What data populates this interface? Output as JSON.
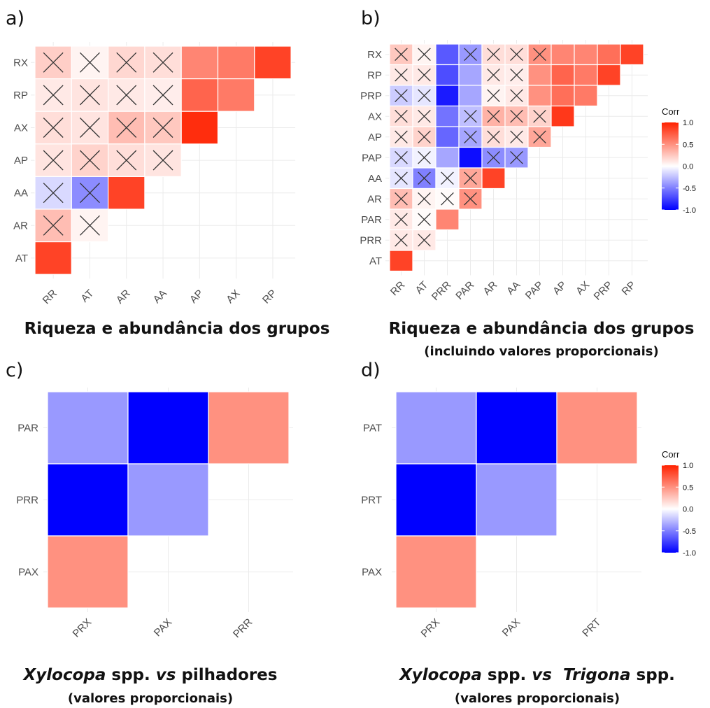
{
  "chart_data": [
    {
      "panel": "a)",
      "type": "heatmap",
      "caption": "Riqueza e abundância dos grupos",
      "subcaption": "",
      "x_labels": [
        "RR",
        "AT",
        "AR",
        "AA",
        "AP",
        "AX",
        "RP"
      ],
      "y_labels": [
        "RX",
        "RP",
        "AX",
        "AP",
        "AA",
        "AR",
        "AT"
      ],
      "cells": [
        {
          "x": "RR",
          "y": "RX",
          "value": 0.22,
          "crossed": true
        },
        {
          "x": "AT",
          "y": "RX",
          "value": 0.05,
          "crossed": true
        },
        {
          "x": "AR",
          "y": "RX",
          "value": 0.18,
          "crossed": true
        },
        {
          "x": "AA",
          "y": "RX",
          "value": 0.15,
          "crossed": true
        },
        {
          "x": "AP",
          "y": "RX",
          "value": 0.55,
          "crossed": false
        },
        {
          "x": "AX",
          "y": "RX",
          "value": 0.6,
          "crossed": false
        },
        {
          "x": "RP",
          "y": "RX",
          "value": 0.85,
          "crossed": false
        },
        {
          "x": "RR",
          "y": "RP",
          "value": 0.1,
          "crossed": true
        },
        {
          "x": "AT",
          "y": "RP",
          "value": 0.12,
          "crossed": true
        },
        {
          "x": "AR",
          "y": "RP",
          "value": 0.1,
          "crossed": true
        },
        {
          "x": "AA",
          "y": "RP",
          "value": 0.08,
          "crossed": true
        },
        {
          "x": "AP",
          "y": "RP",
          "value": 0.7,
          "crossed": false
        },
        {
          "x": "AX",
          "y": "RP",
          "value": 0.6,
          "crossed": false
        },
        {
          "x": "RR",
          "y": "AX",
          "value": 0.15,
          "crossed": true
        },
        {
          "x": "AT",
          "y": "AX",
          "value": 0.12,
          "crossed": true
        },
        {
          "x": "AR",
          "y": "AX",
          "value": 0.3,
          "crossed": true
        },
        {
          "x": "AA",
          "y": "AX",
          "value": 0.25,
          "crossed": true
        },
        {
          "x": "AP",
          "y": "AX",
          "value": 0.95,
          "crossed": false
        },
        {
          "x": "RR",
          "y": "AP",
          "value": 0.12,
          "crossed": true
        },
        {
          "x": "AT",
          "y": "AP",
          "value": 0.2,
          "crossed": true
        },
        {
          "x": "AR",
          "y": "AP",
          "value": 0.15,
          "crossed": true
        },
        {
          "x": "AA",
          "y": "AP",
          "value": 0.12,
          "crossed": true
        },
        {
          "x": "RR",
          "y": "AA",
          "value": -0.15,
          "crossed": true
        },
        {
          "x": "AT",
          "y": "AA",
          "value": -0.45,
          "crossed": true
        },
        {
          "x": "AR",
          "y": "AA",
          "value": 0.85,
          "crossed": false
        },
        {
          "x": "RR",
          "y": "AR",
          "value": 0.3,
          "crossed": true
        },
        {
          "x": "AT",
          "y": "AR",
          "value": 0.05,
          "crossed": true
        },
        {
          "x": "RR",
          "y": "AT",
          "value": 0.85,
          "crossed": false
        }
      ]
    },
    {
      "panel": "b)",
      "type": "heatmap",
      "caption": "Riqueza e abundância dos grupos",
      "subcaption": "(incluindo valores proporcionais)",
      "x_labels": [
        "RR",
        "AT",
        "PRR",
        "PAR",
        "AR",
        "AA",
        "PAP",
        "AP",
        "AX",
        "PRP",
        "RP"
      ],
      "y_labels": [
        "RX",
        "RP",
        "PRP",
        "AX",
        "AP",
        "PAP",
        "AA",
        "AR",
        "PAR",
        "PRR",
        "AT"
      ],
      "cells": [
        {
          "x": "RR",
          "y": "RX",
          "value": 0.25,
          "crossed": true
        },
        {
          "x": "AT",
          "y": "RX",
          "value": 0.05,
          "crossed": true
        },
        {
          "x": "PRR",
          "y": "RX",
          "value": -0.65,
          "crossed": false
        },
        {
          "x": "PAR",
          "y": "RX",
          "value": -0.4,
          "crossed": true
        },
        {
          "x": "AR",
          "y": "RX",
          "value": 0.15,
          "crossed": true
        },
        {
          "x": "AA",
          "y": "RX",
          "value": 0.15,
          "crossed": true
        },
        {
          "x": "PAP",
          "y": "RX",
          "value": 0.5,
          "crossed": true
        },
        {
          "x": "AP",
          "y": "RX",
          "value": 0.55,
          "crossed": false
        },
        {
          "x": "AX",
          "y": "RX",
          "value": 0.55,
          "crossed": false
        },
        {
          "x": "PRP",
          "y": "RX",
          "value": 0.65,
          "crossed": false
        },
        {
          "x": "RP",
          "y": "RX",
          "value": 0.85,
          "crossed": false
        },
        {
          "x": "RR",
          "y": "RP",
          "value": 0.1,
          "crossed": true
        },
        {
          "x": "AT",
          "y": "RP",
          "value": 0.1,
          "crossed": true
        },
        {
          "x": "PRR",
          "y": "RP",
          "value": -0.7,
          "crossed": false
        },
        {
          "x": "PAR",
          "y": "RP",
          "value": -0.35,
          "crossed": false
        },
        {
          "x": "AR",
          "y": "RP",
          "value": 0.1,
          "crossed": true
        },
        {
          "x": "AA",
          "y": "RP",
          "value": 0.08,
          "crossed": true
        },
        {
          "x": "PAP",
          "y": "RP",
          "value": 0.5,
          "crossed": false
        },
        {
          "x": "AP",
          "y": "RP",
          "value": 0.7,
          "crossed": false
        },
        {
          "x": "AX",
          "y": "RP",
          "value": 0.6,
          "crossed": false
        },
        {
          "x": "PRP",
          "y": "RP",
          "value": 0.85,
          "crossed": false
        },
        {
          "x": "RR",
          "y": "PRP",
          "value": -0.2,
          "crossed": true
        },
        {
          "x": "AT",
          "y": "PRP",
          "value": -0.1,
          "crossed": true
        },
        {
          "x": "PRR",
          "y": "PRP",
          "value": -0.9,
          "crossed": false
        },
        {
          "x": "PAR",
          "y": "PRP",
          "value": -0.35,
          "crossed": false
        },
        {
          "x": "AR",
          "y": "PRP",
          "value": 0.05,
          "crossed": true
        },
        {
          "x": "AA",
          "y": "PRP",
          "value": 0.1,
          "crossed": true
        },
        {
          "x": "PAP",
          "y": "PRP",
          "value": 0.5,
          "crossed": false
        },
        {
          "x": "AP",
          "y": "PRP",
          "value": 0.65,
          "crossed": false
        },
        {
          "x": "AX",
          "y": "PRP",
          "value": 0.6,
          "crossed": false
        },
        {
          "x": "RR",
          "y": "AX",
          "value": 0.15,
          "crossed": true
        },
        {
          "x": "AT",
          "y": "AX",
          "value": 0.1,
          "crossed": true
        },
        {
          "x": "PRR",
          "y": "AX",
          "value": -0.55,
          "crossed": false
        },
        {
          "x": "PAR",
          "y": "AX",
          "value": -0.25,
          "crossed": true
        },
        {
          "x": "AR",
          "y": "AX",
          "value": 0.35,
          "crossed": true
        },
        {
          "x": "AA",
          "y": "AX",
          "value": 0.3,
          "crossed": true
        },
        {
          "x": "PAP",
          "y": "AX",
          "value": 0.2,
          "crossed": true
        },
        {
          "x": "AP",
          "y": "AX",
          "value": 0.9,
          "crossed": false
        },
        {
          "x": "RR",
          "y": "AP",
          "value": 0.1,
          "crossed": true
        },
        {
          "x": "AT",
          "y": "AP",
          "value": 0.2,
          "crossed": true
        },
        {
          "x": "PRR",
          "y": "AP",
          "value": -0.6,
          "crossed": false
        },
        {
          "x": "PAR",
          "y": "AP",
          "value": -0.35,
          "crossed": true
        },
        {
          "x": "AR",
          "y": "AP",
          "value": 0.15,
          "crossed": true
        },
        {
          "x": "AA",
          "y": "AP",
          "value": 0.1,
          "crossed": true
        },
        {
          "x": "PAP",
          "y": "AP",
          "value": 0.4,
          "crossed": true
        },
        {
          "x": "RR",
          "y": "PAP",
          "value": -0.15,
          "crossed": true
        },
        {
          "x": "AT",
          "y": "PAP",
          "value": -0.05,
          "crossed": true
        },
        {
          "x": "PRR",
          "y": "PAP",
          "value": -0.35,
          "crossed": false
        },
        {
          "x": "PAR",
          "y": "PAP",
          "value": -0.95,
          "crossed": false
        },
        {
          "x": "AR",
          "y": "PAP",
          "value": -0.45,
          "crossed": true
        },
        {
          "x": "AA",
          "y": "PAP",
          "value": -0.4,
          "crossed": true
        },
        {
          "x": "RR",
          "y": "AA",
          "value": -0.1,
          "crossed": true
        },
        {
          "x": "AT",
          "y": "AA",
          "value": -0.5,
          "crossed": true
        },
        {
          "x": "PRR",
          "y": "AA",
          "value": -0.05,
          "crossed": true
        },
        {
          "x": "PAR",
          "y": "AA",
          "value": 0.4,
          "crossed": true
        },
        {
          "x": "AR",
          "y": "AA",
          "value": 0.85,
          "crossed": false
        },
        {
          "x": "RR",
          "y": "AR",
          "value": 0.3,
          "crossed": true
        },
        {
          "x": "AT",
          "y": "AR",
          "value": 0.05,
          "crossed": true
        },
        {
          "x": "PRR",
          "y": "AR",
          "value": 0.02,
          "crossed": true
        },
        {
          "x": "PAR",
          "y": "AR",
          "value": 0.5,
          "crossed": true
        },
        {
          "x": "RR",
          "y": "PAR",
          "value": 0.1,
          "crossed": true
        },
        {
          "x": "AT",
          "y": "PAR",
          "value": 0.02,
          "crossed": true
        },
        {
          "x": "PRR",
          "y": "PAR",
          "value": 0.55,
          "crossed": false
        },
        {
          "x": "RR",
          "y": "PRR",
          "value": 0.1,
          "crossed": true
        },
        {
          "x": "AT",
          "y": "PRR",
          "value": 0.1,
          "crossed": true
        },
        {
          "x": "RR",
          "y": "AT",
          "value": 0.85,
          "crossed": false
        }
      ],
      "legend": {
        "title": "Corr",
        "ticks": [
          "1.0",
          "0.5",
          "0.0",
          "-0.5",
          "-1.0"
        ],
        "range": [
          -1,
          1
        ],
        "placement": "right"
      }
    },
    {
      "panel": "c)",
      "type": "heatmap",
      "caption_italic": "Xylocopa",
      "caption_rest": " spp. ",
      "caption_vs": "vs",
      "caption_end": " pilhadores",
      "subcaption": "(valores proporcionais)",
      "x_labels": [
        "PRX",
        "PAX",
        "PRR"
      ],
      "y_labels": [
        "PAR",
        "PRR",
        "PAX"
      ],
      "cells": [
        {
          "x": "PRX",
          "y": "PAR",
          "value": -0.4,
          "crossed": false
        },
        {
          "x": "PAX",
          "y": "PAR",
          "value": -1.0,
          "crossed": false
        },
        {
          "x": "PRR",
          "y": "PAR",
          "value": 0.5,
          "crossed": false
        },
        {
          "x": "PRX",
          "y": "PRR",
          "value": -1.0,
          "crossed": false
        },
        {
          "x": "PAX",
          "y": "PRR",
          "value": -0.4,
          "crossed": false
        },
        {
          "x": "PRX",
          "y": "PAX",
          "value": 0.5,
          "crossed": false
        }
      ]
    },
    {
      "panel": "d)",
      "type": "heatmap",
      "caption_italic": "Xylocopa",
      "caption_rest": " spp. ",
      "caption_vs": "vs",
      "caption_italic2": "Trigona",
      "caption_end": " spp.",
      "subcaption": "(valores proporcionais)",
      "x_labels": [
        "PRX",
        "PAX",
        "PRT"
      ],
      "y_labels": [
        "PAT",
        "PRT",
        "PAX"
      ],
      "cells": [
        {
          "x": "PRX",
          "y": "PAT",
          "value": -0.4,
          "crossed": false
        },
        {
          "x": "PAX",
          "y": "PAT",
          "value": -1.0,
          "crossed": false
        },
        {
          "x": "PRT",
          "y": "PAT",
          "value": 0.5,
          "crossed": false
        },
        {
          "x": "PRX",
          "y": "PRT",
          "value": -1.0,
          "crossed": false
        },
        {
          "x": "PAX",
          "y": "PRT",
          "value": -0.4,
          "crossed": false
        },
        {
          "x": "PRX",
          "y": "PAX",
          "value": 0.5,
          "crossed": false
        }
      ],
      "legend": {
        "title": "Corr",
        "ticks": [
          "1.0",
          "0.5",
          "0.0",
          "-0.5",
          "-1.0"
        ],
        "range": [
          -1,
          1
        ],
        "placement": "right"
      }
    }
  ],
  "colors": {
    "low": "#0000ff",
    "mid": "#ffffff",
    "high": "#ff2200",
    "grid": "#ebebeb",
    "cross": "#333333"
  }
}
